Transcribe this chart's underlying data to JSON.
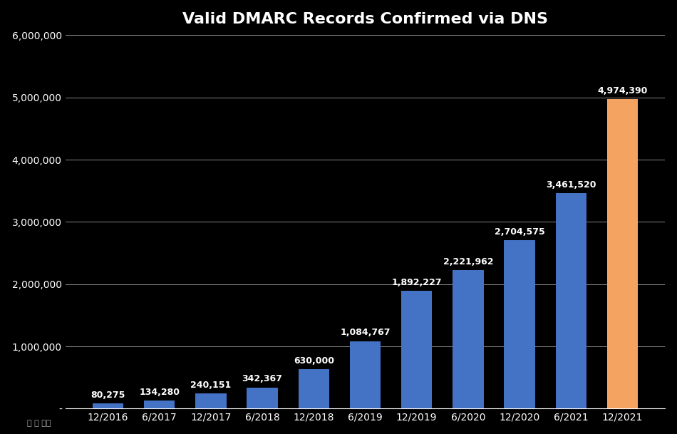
{
  "title": "Valid DMARC Records Confirmed via DNS",
  "categories": [
    "12/2016",
    "6/2017",
    "12/2017",
    "6/2018",
    "12/2018",
    "6/2019",
    "12/2019",
    "6/2020",
    "12/2020",
    "6/2021",
    "12/2021"
  ],
  "values": [
    80275,
    134280,
    240151,
    342367,
    630000,
    1084767,
    1892227,
    2221962,
    2704575,
    3461520,
    4974390
  ],
  "bar_colors": [
    "#4472C4",
    "#4472C4",
    "#4472C4",
    "#4472C4",
    "#4472C4",
    "#4472C4",
    "#4472C4",
    "#4472C4",
    "#4472C4",
    "#4472C4",
    "#F4A460"
  ],
  "labels": [
    "80,275",
    "134,280",
    "240,151",
    "342,367",
    "630,000",
    "1,084,767",
    "1,892,227",
    "2,221,962",
    "2,704,575",
    "3,461,520",
    "4,974,390"
  ],
  "ylim": [
    0,
    6000000
  ],
  "yticks": [
    0,
    1000000,
    2000000,
    3000000,
    4000000,
    5000000,
    6000000
  ],
  "ytick_labels": [
    "-",
    "1,000,000",
    "2,000,000",
    "3,000,000",
    "4,000,000",
    "5,000,000",
    "6,000,000"
  ],
  "background_color": "#000000",
  "text_color": "#FFFFFF",
  "grid_color": "#444444",
  "title_fontsize": 16,
  "label_fontsize": 9,
  "tick_fontsize": 10,
  "bar_width": 0.6
}
